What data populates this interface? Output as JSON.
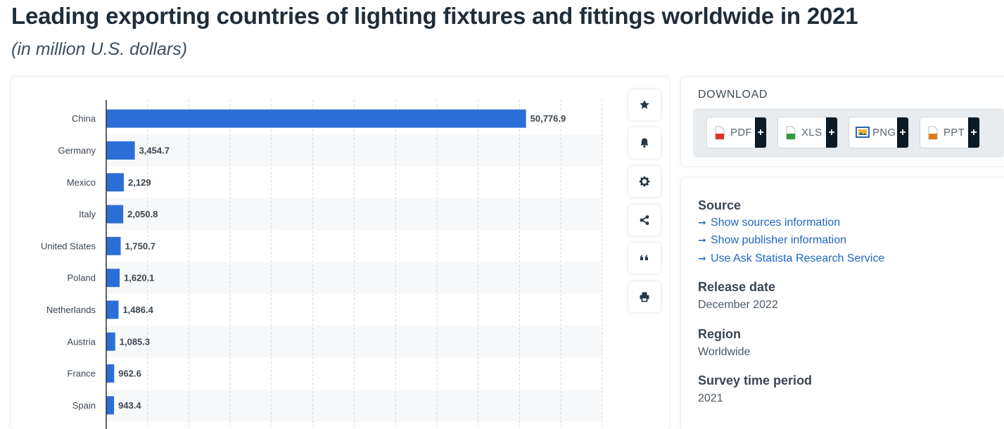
{
  "header": {
    "title": "Leading exporting countries of lighting fixtures and fittings worldwide in 2021",
    "subtitle": "(in million U.S. dollars)"
  },
  "chart_data": {
    "type": "bar",
    "orientation": "horizontal",
    "categories": [
      "China",
      "Germany",
      "Mexico",
      "Italy",
      "United States",
      "Poland",
      "Netherlands",
      "Austria",
      "France",
      "Spain"
    ],
    "values": [
      50776.9,
      3454.7,
      2129,
      2050.8,
      1750.7,
      1620.1,
      1486.4,
      1085.3,
      962.6,
      943.4
    ],
    "value_labels": [
      "50,776.9",
      "3,454.7",
      "2,129",
      "2,050.8",
      "1,750.7",
      "1,620.1",
      "1,486.4",
      "1,085.3",
      "962.6",
      "943.4"
    ],
    "title": "",
    "xlabel": "",
    "ylabel": "",
    "xlim": [
      0,
      60000
    ],
    "grid": true,
    "bar_color": "#2b6fd6"
  },
  "toolbar": {
    "items": [
      {
        "name": "favorite",
        "icon": "star-icon"
      },
      {
        "name": "notification",
        "icon": "bell-icon"
      },
      {
        "name": "settings",
        "icon": "gear-icon"
      },
      {
        "name": "share",
        "icon": "share-icon"
      },
      {
        "name": "cite",
        "icon": "quote-icon"
      },
      {
        "name": "print",
        "icon": "printer-icon"
      }
    ]
  },
  "download": {
    "heading": "DOWNLOAD",
    "buttons": [
      {
        "label": "PDF",
        "icon": "pdf-file-icon",
        "color": "#d9342b"
      },
      {
        "label": "XLS",
        "icon": "xls-file-icon",
        "color": "#2f9a3c"
      },
      {
        "label": "PNG",
        "icon": "png-image-icon",
        "color": "#2a64b0"
      },
      {
        "label": "PPT",
        "icon": "ppt-file-icon",
        "color": "#e07b1f"
      }
    ],
    "plus": "+"
  },
  "info": {
    "source_heading": "Source",
    "links": [
      "Show sources information",
      "Show publisher information",
      "Use Ask Statista Research Service"
    ],
    "arrow": "➞",
    "release_heading": "Release date",
    "release_value": "December 2022",
    "region_heading": "Region",
    "region_value": "Worldwide",
    "period_heading": "Survey time period",
    "period_value": "2021"
  }
}
